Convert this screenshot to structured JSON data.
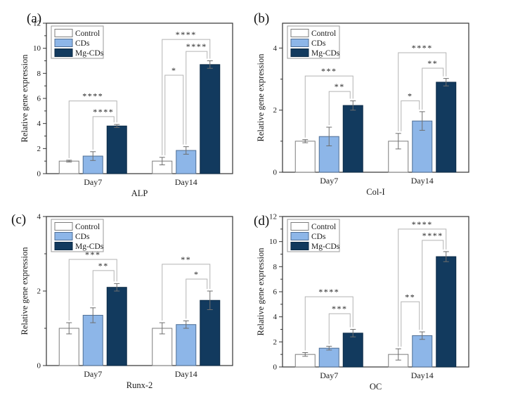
{
  "figure": {
    "ylabel": "Relative gene expression",
    "categories": [
      "Day7",
      "Day14"
    ],
    "legend_labels": [
      "Control",
      "CDs",
      "Mg-CDs"
    ],
    "colors": {
      "background": "#ffffff",
      "frame": "#333333",
      "error_bar": "#6e6e6e",
      "bracket": "#b3b3b3",
      "sig_text": "#222222",
      "legend_border": "#999999"
    },
    "series_styles": [
      {
        "name": "Control",
        "fill": "#ffffff",
        "edge": "#7d7d7d"
      },
      {
        "name": "CDs",
        "fill": "#8db6e8",
        "edge": "#4f6e94"
      },
      {
        "name": "Mg-CDs",
        "fill": "#123a5e",
        "edge": "#0b2a46"
      }
    ]
  },
  "chart_data": [
    {
      "type": "bar",
      "panel_label": "(a)",
      "xlabel": "ALP",
      "ylabel": "Relative gene expression",
      "categories": [
        "Day7",
        "Day14"
      ],
      "ylim": [
        0,
        12
      ],
      "yticks": [
        0,
        2,
        4,
        6,
        8,
        10,
        12
      ],
      "legend_position": "top-left",
      "series": [
        {
          "name": "Control",
          "values": [
            1.0,
            1.0
          ],
          "errors": [
            0.07,
            0.3
          ]
        },
        {
          "name": "CDs",
          "values": [
            1.4,
            1.85
          ],
          "errors": [
            0.35,
            0.3
          ]
        },
        {
          "name": "Mg-CDs",
          "values": [
            3.8,
            8.7
          ],
          "errors": [
            0.12,
            0.3
          ]
        }
      ],
      "significance": [
        {
          "group": 0,
          "from": "Control",
          "to": "Mg-CDs",
          "height": 5.8,
          "label": "****"
        },
        {
          "group": 0,
          "from": "CDs",
          "to": "Mg-CDs",
          "height": 4.55,
          "label": "****"
        },
        {
          "group": 1,
          "from": "Control",
          "to": "Mg-CDs",
          "height": 10.7,
          "label": "****"
        },
        {
          "group": 1,
          "from": "CDs",
          "to": "Mg-CDs",
          "height": 9.75,
          "label": "****"
        },
        {
          "group": 1,
          "from": "Control",
          "to": "CDs",
          "height": 7.85,
          "label": "*"
        }
      ]
    },
    {
      "type": "bar",
      "panel_label": "(b)",
      "xlabel": "Col-I",
      "ylabel": "Relative gene expression",
      "categories": [
        "Day7",
        "Day14"
      ],
      "ylim": [
        0,
        4.8
      ],
      "yticks": [
        0,
        2,
        4
      ],
      "legend_position": "top-left",
      "series": [
        {
          "name": "Control",
          "values": [
            1.0,
            1.0
          ],
          "errors": [
            0.05,
            0.25
          ]
        },
        {
          "name": "CDs",
          "values": [
            1.15,
            1.65
          ],
          "errors": [
            0.3,
            0.3
          ]
        },
        {
          "name": "Mg-CDs",
          "values": [
            2.15,
            2.9
          ],
          "errors": [
            0.15,
            0.12
          ]
        }
      ],
      "significance": [
        {
          "group": 0,
          "from": "Control",
          "to": "Mg-CDs",
          "height": 3.1,
          "label": "***"
        },
        {
          "group": 0,
          "from": "CDs",
          "to": "Mg-CDs",
          "height": 2.6,
          "label": "**"
        },
        {
          "group": 1,
          "from": "Control",
          "to": "Mg-CDs",
          "height": 3.85,
          "label": "****"
        },
        {
          "group": 1,
          "from": "CDs",
          "to": "Mg-CDs",
          "height": 3.35,
          "label": "**"
        },
        {
          "group": 1,
          "from": "Control",
          "to": "CDs",
          "height": 2.3,
          "label": "*"
        }
      ]
    },
    {
      "type": "bar",
      "panel_label": "(c)",
      "xlabel": "Runx-2",
      "ylabel": "Relative gene expression",
      "categories": [
        "Day7",
        "Day14"
      ],
      "ylim": [
        0,
        4
      ],
      "yticks": [
        0,
        2,
        4
      ],
      "legend_position": "top-left",
      "series": [
        {
          "name": "Control",
          "values": [
            1.0,
            1.0
          ],
          "errors": [
            0.15,
            0.15
          ]
        },
        {
          "name": "CDs",
          "values": [
            1.35,
            1.1
          ],
          "errors": [
            0.2,
            0.1
          ]
        },
        {
          "name": "Mg-CDs",
          "values": [
            2.1,
            1.75
          ],
          "errors": [
            0.1,
            0.25
          ]
        }
      ],
      "significance": [
        {
          "group": 0,
          "from": "Control",
          "to": "Mg-CDs",
          "height": 2.85,
          "label": "***"
        },
        {
          "group": 0,
          "from": "CDs",
          "to": "Mg-CDs",
          "height": 2.55,
          "label": "**"
        },
        {
          "group": 1,
          "from": "Control",
          "to": "Mg-CDs",
          "height": 2.72,
          "label": "**"
        },
        {
          "group": 1,
          "from": "CDs",
          "to": "Mg-CDs",
          "height": 2.32,
          "label": "*"
        }
      ]
    },
    {
      "type": "bar",
      "panel_label": "(d)",
      "xlabel": "OC",
      "ylabel": "Relative gene expression",
      "categories": [
        "Day7",
        "Day14"
      ],
      "ylim": [
        0,
        12
      ],
      "yticks": [
        0,
        2,
        4,
        6,
        8,
        10,
        12
      ],
      "legend_position": "top-left",
      "series": [
        {
          "name": "Control",
          "values": [
            1.0,
            1.0
          ],
          "errors": [
            0.15,
            0.45
          ]
        },
        {
          "name": "CDs",
          "values": [
            1.5,
            2.5
          ],
          "errors": [
            0.15,
            0.3
          ]
        },
        {
          "name": "Mg-CDs",
          "values": [
            2.7,
            8.8
          ],
          "errors": [
            0.3,
            0.4
          ]
        }
      ],
      "significance": [
        {
          "group": 0,
          "from": "Control",
          "to": "Mg-CDs",
          "height": 5.6,
          "label": "****"
        },
        {
          "group": 0,
          "from": "CDs",
          "to": "Mg-CDs",
          "height": 4.25,
          "label": "***"
        },
        {
          "group": 1,
          "from": "Control",
          "to": "Mg-CDs",
          "height": 11.0,
          "label": "****"
        },
        {
          "group": 1,
          "from": "CDs",
          "to": "Mg-CDs",
          "height": 10.1,
          "label": "****"
        },
        {
          "group": 1,
          "from": "Control",
          "to": "CDs",
          "height": 5.2,
          "label": "**"
        }
      ]
    }
  ]
}
